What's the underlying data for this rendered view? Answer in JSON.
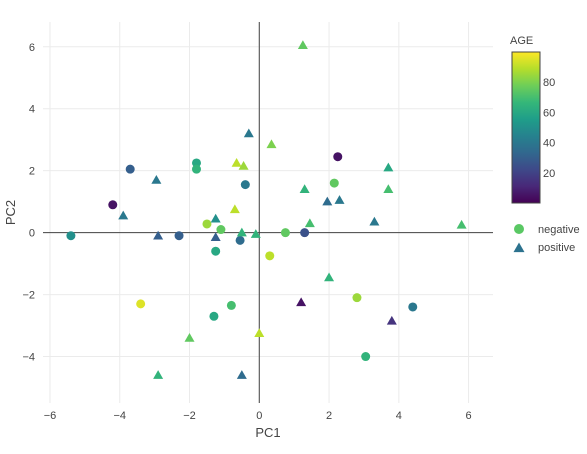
{
  "chart_data": {
    "type": "scatter",
    "title": "",
    "xlabel": "PC1",
    "ylabel": "PC2",
    "xlim": [
      -6.2,
      6.7
    ],
    "ylim": [
      -5.5,
      6.8
    ],
    "xticks": [
      -6,
      -4,
      -2,
      0,
      2,
      4,
      6
    ],
    "yticks": [
      -4,
      -2,
      0,
      2,
      4,
      6
    ],
    "tick_labels_x": [
      "−6",
      "−4",
      "−2",
      "0",
      "2",
      "4",
      "6"
    ],
    "tick_labels_y": [
      "−4",
      "−2",
      "0",
      "2",
      "4",
      "6"
    ],
    "grid": true,
    "zero_lines": true,
    "legend_position": "right",
    "legend": {
      "entries": [
        {
          "label": "negative",
          "symbol": "circle",
          "color": "#5ac864"
        },
        {
          "label": "positive",
          "symbol": "triangle-up",
          "color": "#2c728e"
        }
      ]
    },
    "colorbar": {
      "title": "AGE",
      "min": 0,
      "max": 100,
      "ticks": [
        20,
        40,
        60,
        80
      ],
      "tick_labels": [
        "20",
        "40",
        "60",
        "80"
      ],
      "colorscale": "viridis",
      "colors": [
        "#440154",
        "#482878",
        "#3e4989",
        "#31688e",
        "#26828e",
        "#1f9e89",
        "#35b779",
        "#6ece58",
        "#b5de2b",
        "#fde725"
      ]
    },
    "series": [
      {
        "name": "negative",
        "symbol": "circle",
        "points": [
          {
            "x": -5.4,
            "y": -0.1,
            "age": 50
          },
          {
            "x": -4.2,
            "y": 0.9,
            "age": 5
          },
          {
            "x": -3.7,
            "y": 2.05,
            "age": 30
          },
          {
            "x": -3.4,
            "y": -2.3,
            "age": 95
          },
          {
            "x": -2.3,
            "y": -0.1,
            "age": 30
          },
          {
            "x": -1.8,
            "y": 2.25,
            "age": 60
          },
          {
            "x": -1.8,
            "y": 2.05,
            "age": 65
          },
          {
            "x": -1.5,
            "y": 0.28,
            "age": 85
          },
          {
            "x": -1.25,
            "y": -0.6,
            "age": 60
          },
          {
            "x": -1.1,
            "y": 0.1,
            "age": 75
          },
          {
            "x": -1.3,
            "y": -2.7,
            "age": 60
          },
          {
            "x": -0.8,
            "y": -2.35,
            "age": 70
          },
          {
            "x": -0.55,
            "y": -0.25,
            "age": 35
          },
          {
            "x": -0.4,
            "y": 1.55,
            "age": 40
          },
          {
            "x": 0.3,
            "y": -0.75,
            "age": 90
          },
          {
            "x": 0.75,
            "y": 0.0,
            "age": 75
          },
          {
            "x": 1.3,
            "y": 0.0,
            "age": 25
          },
          {
            "x": 2.15,
            "y": 1.6,
            "age": 75
          },
          {
            "x": 2.25,
            "y": 2.45,
            "age": 5
          },
          {
            "x": 2.8,
            "y": -2.1,
            "age": 85
          },
          {
            "x": 3.05,
            "y": -4.0,
            "age": 65
          },
          {
            "x": 4.4,
            "y": -2.4,
            "age": 40
          }
        ]
      },
      {
        "name": "positive",
        "symbol": "triangle-up",
        "points": [
          {
            "x": -3.9,
            "y": 0.55,
            "age": 40
          },
          {
            "x": -2.95,
            "y": 1.7,
            "age": 40
          },
          {
            "x": -2.9,
            "y": -0.1,
            "age": 30
          },
          {
            "x": -2.9,
            "y": -4.6,
            "age": 65
          },
          {
            "x": -2.0,
            "y": -3.4,
            "age": 75
          },
          {
            "x": -1.25,
            "y": 0.45,
            "age": 50
          },
          {
            "x": -1.25,
            "y": -0.15,
            "age": 30
          },
          {
            "x": -0.7,
            "y": 0.75,
            "age": 90
          },
          {
            "x": -0.65,
            "y": 2.25,
            "age": 90
          },
          {
            "x": -0.45,
            "y": 2.15,
            "age": 85
          },
          {
            "x": -0.5,
            "y": 0.0,
            "age": 65
          },
          {
            "x": -0.5,
            "y": -4.6,
            "age": 35
          },
          {
            "x": -0.3,
            "y": 3.2,
            "age": 40
          },
          {
            "x": -0.1,
            "y": -0.05,
            "age": 65
          },
          {
            "x": 0.0,
            "y": -3.25,
            "age": 90
          },
          {
            "x": 0.35,
            "y": 2.85,
            "age": 80
          },
          {
            "x": 1.25,
            "y": 6.05,
            "age": 75
          },
          {
            "x": 1.3,
            "y": 1.4,
            "age": 65
          },
          {
            "x": 1.45,
            "y": 0.3,
            "age": 70
          },
          {
            "x": 1.2,
            "y": -2.25,
            "age": 5
          },
          {
            "x": 1.95,
            "y": 1.0,
            "age": 35
          },
          {
            "x": 2.3,
            "y": 1.05,
            "age": 40
          },
          {
            "x": 2.0,
            "y": -1.45,
            "age": 65
          },
          {
            "x": 3.3,
            "y": 0.35,
            "age": 40
          },
          {
            "x": 3.7,
            "y": 1.4,
            "age": 70
          },
          {
            "x": 3.7,
            "y": 2.1,
            "age": 60
          },
          {
            "x": 3.8,
            "y": -2.85,
            "age": 15
          },
          {
            "x": 5.8,
            "y": 0.25,
            "age": 70
          }
        ]
      }
    ]
  }
}
